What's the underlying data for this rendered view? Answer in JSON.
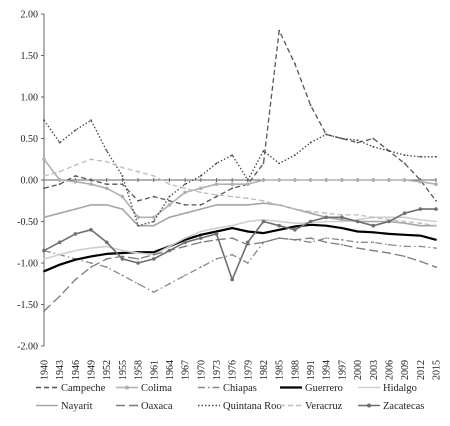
{
  "chart_data": {
    "type": "line",
    "title": "",
    "xlabel": "",
    "ylabel": "",
    "ylim": [
      -2.0,
      2.0
    ],
    "xlim": [
      1940,
      2015
    ],
    "y_ticks": [
      "2.00",
      "1.50",
      "1.00",
      "0.50",
      "0.00",
      "-0.50",
      "-1.00",
      "-1.50",
      "-2.00"
    ],
    "x_ticks": [
      1940,
      1943,
      1946,
      1949,
      1952,
      1955,
      1958,
      1961,
      1964,
      1967,
      1970,
      1973,
      1976,
      1979,
      1982,
      1985,
      1988,
      1991,
      1994,
      1997,
      2000,
      2003,
      2006,
      2009,
      2012,
      2015
    ],
    "grid": false,
    "legend_position": "bottom",
    "series": [
      {
        "name": "Campeche",
        "color": "#555555",
        "style": "dash",
        "x": [
          1940,
          1943,
          1946,
          1949,
          1952,
          1955,
          1958,
          1961,
          1964,
          1967,
          1970,
          1973,
          1976,
          1979,
          1982,
          1985,
          1988,
          1991,
          1994,
          1997,
          2000,
          2003,
          2006,
          2009,
          2012,
          2015
        ],
        "values": [
          -0.1,
          -0.05,
          0.05,
          0.0,
          -0.05,
          -0.05,
          -0.25,
          -0.2,
          -0.25,
          -0.3,
          -0.3,
          -0.2,
          -0.1,
          -0.05,
          0.2,
          1.8,
          1.4,
          0.9,
          0.55,
          0.5,
          0.45,
          0.5,
          0.35,
          0.2,
          0.0,
          -0.25
        ]
      },
      {
        "name": "Colima",
        "color": "#b0b0b0",
        "style": "solid-marker",
        "x": [
          1940,
          1943,
          1946,
          1949,
          1952,
          1955,
          1958,
          1961,
          1964,
          1967,
          1970,
          1973,
          1976,
          1979,
          1982,
          1985,
          1988,
          1991,
          1994,
          1997,
          2000,
          2003,
          2006,
          2009,
          2012,
          2015
        ],
        "values": [
          0.25,
          0.0,
          -0.02,
          -0.05,
          -0.1,
          -0.2,
          -0.45,
          -0.45,
          -0.3,
          -0.15,
          -0.1,
          -0.05,
          -0.05,
          -0.05,
          0.0,
          0.0,
          0.0,
          0.0,
          0.0,
          0.0,
          0.0,
          0.0,
          0.0,
          0.0,
          -0.02,
          -0.05
        ]
      },
      {
        "name": "Chiapas",
        "color": "#888888",
        "style": "dash-dot",
        "x": [
          1940,
          1943,
          1946,
          1949,
          1952,
          1955,
          1958,
          1961,
          1964,
          1967,
          1970,
          1973,
          1976,
          1979,
          1982,
          1985,
          1988,
          1991,
          1994,
          1997,
          2000,
          2003,
          2006,
          2009,
          2012,
          2015
        ],
        "values": [
          -0.85,
          -0.9,
          -0.95,
          -1.0,
          -1.05,
          -1.15,
          -1.25,
          -1.35,
          -1.25,
          -1.15,
          -1.05,
          -0.95,
          -0.9,
          -1.0,
          -0.75,
          -0.7,
          -0.72,
          -0.75,
          -0.7,
          -0.72,
          -0.75,
          -0.75,
          -0.78,
          -0.8,
          -0.8,
          -0.82
        ]
      },
      {
        "name": "Guerrero",
        "color": "#000000",
        "style": "thick",
        "x": [
          1940,
          1943,
          1946,
          1949,
          1952,
          1955,
          1958,
          1961,
          1964,
          1967,
          1970,
          1973,
          1976,
          1979,
          1982,
          1985,
          1988,
          1991,
          1994,
          1997,
          2000,
          2003,
          2006,
          2009,
          2012,
          2015
        ],
        "values": [
          -1.1,
          -1.02,
          -0.96,
          -0.92,
          -0.89,
          -0.88,
          -0.87,
          -0.87,
          -0.8,
          -0.72,
          -0.66,
          -0.62,
          -0.58,
          -0.62,
          -0.64,
          -0.6,
          -0.56,
          -0.54,
          -0.55,
          -0.58,
          -0.62,
          -0.63,
          -0.65,
          -0.66,
          -0.67,
          -0.72
        ]
      },
      {
        "name": "Hidalgo",
        "color": "#cfcfcf",
        "style": "solid",
        "x": [
          1940,
          1943,
          1946,
          1949,
          1952,
          1955,
          1958,
          1961,
          1964,
          1967,
          1970,
          1973,
          1976,
          1979,
          1982,
          1985,
          1988,
          1991,
          1994,
          1997,
          2000,
          2003,
          2006,
          2009,
          2012,
          2015
        ],
        "values": [
          -0.95,
          -0.9,
          -0.85,
          -0.82,
          -0.8,
          -0.85,
          -0.88,
          -0.9,
          -0.8,
          -0.7,
          -0.62,
          -0.58,
          -0.55,
          -0.5,
          -0.48,
          -0.5,
          -0.52,
          -0.52,
          -0.5,
          -0.5,
          -0.48,
          -0.45,
          -0.45,
          -0.45,
          -0.48,
          -0.5
        ]
      },
      {
        "name": "Nayarit",
        "color": "#a6a6a6",
        "style": "solid",
        "x": [
          1940,
          1943,
          1946,
          1949,
          1952,
          1955,
          1958,
          1961,
          1964,
          1967,
          1970,
          1973,
          1976,
          1979,
          1982,
          1985,
          1988,
          1991,
          1994,
          1997,
          2000,
          2003,
          2006,
          2009,
          2012,
          2015
        ],
        "values": [
          -0.45,
          -0.4,
          -0.35,
          -0.3,
          -0.3,
          -0.35,
          -0.55,
          -0.55,
          -0.45,
          -0.4,
          -0.35,
          -0.3,
          -0.3,
          -0.3,
          -0.28,
          -0.3,
          -0.35,
          -0.4,
          -0.45,
          -0.48,
          -0.5,
          -0.5,
          -0.5,
          -0.52,
          -0.55,
          -0.55
        ]
      },
      {
        "name": "Oaxaca",
        "color": "#7a7a7a",
        "style": "long-dash",
        "x": [
          1940,
          1943,
          1946,
          1949,
          1952,
          1955,
          1958,
          1961,
          1964,
          1967,
          1970,
          1973,
          1976,
          1979,
          1982,
          1985,
          1988,
          1991,
          1994,
          1997,
          2000,
          2003,
          2006,
          2009,
          2012,
          2015
        ],
        "values": [
          -1.58,
          -1.4,
          -1.2,
          -1.05,
          -0.95,
          -0.92,
          -0.95,
          -0.9,
          -0.85,
          -0.8,
          -0.75,
          -0.72,
          -0.7,
          -0.78,
          -0.75,
          -0.7,
          -0.72,
          -0.7,
          -0.75,
          -0.78,
          -0.82,
          -0.85,
          -0.88,
          -0.92,
          -0.98,
          -1.05
        ]
      },
      {
        "name": "Quintana Roo",
        "color": "#444444",
        "style": "dot",
        "x": [
          1940,
          1943,
          1946,
          1949,
          1952,
          1955,
          1958,
          1961,
          1964,
          1967,
          1970,
          1973,
          1976,
          1979,
          1982,
          1985,
          1988,
          1991,
          1994,
          1997,
          2000,
          2003,
          2006,
          2009,
          2012,
          2015
        ],
        "values": [
          0.72,
          0.45,
          0.6,
          0.72,
          0.35,
          0.05,
          -0.55,
          -0.5,
          -0.2,
          -0.05,
          0.05,
          0.2,
          0.3,
          0.0,
          0.35,
          0.2,
          0.3,
          0.45,
          0.55,
          0.5,
          0.48,
          0.4,
          0.35,
          0.3,
          0.28,
          0.28
        ]
      },
      {
        "name": "Veracruz",
        "color": "#bdbdbd",
        "style": "dash",
        "x": [
          1940,
          1943,
          1946,
          1949,
          1952,
          1955,
          1958,
          1961,
          1964,
          1967,
          1970,
          1973,
          1976,
          1979,
          1982,
          1985,
          1988,
          1991,
          1994,
          1997,
          2000,
          2003,
          2006,
          2009,
          2012,
          2015
        ],
        "values": [
          0.05,
          0.1,
          0.18,
          0.25,
          0.22,
          0.15,
          0.1,
          0.05,
          -0.05,
          -0.1,
          -0.15,
          -0.18,
          -0.2,
          -0.22,
          -0.25,
          -0.3,
          -0.35,
          -0.38,
          -0.4,
          -0.42,
          -0.42,
          -0.45,
          -0.48,
          -0.5,
          -0.52,
          -0.55
        ]
      },
      {
        "name": "Zacatecas",
        "color": "#6e6e6e",
        "style": "solid-marker",
        "x": [
          1940,
          1943,
          1946,
          1949,
          1952,
          1955,
          1958,
          1961,
          1964,
          1967,
          1970,
          1973,
          1976,
          1979,
          1982,
          1985,
          1988,
          1991,
          1994,
          1997,
          2000,
          2003,
          2006,
          2009,
          2012,
          2015
        ],
        "values": [
          -0.85,
          -0.75,
          -0.65,
          -0.6,
          -0.75,
          -0.95,
          -1.0,
          -0.95,
          -0.85,
          -0.75,
          -0.7,
          -0.65,
          -1.2,
          -0.75,
          -0.5,
          -0.55,
          -0.6,
          -0.5,
          -0.45,
          -0.45,
          -0.5,
          -0.55,
          -0.5,
          -0.4,
          -0.35,
          -0.35
        ]
      }
    ]
  }
}
